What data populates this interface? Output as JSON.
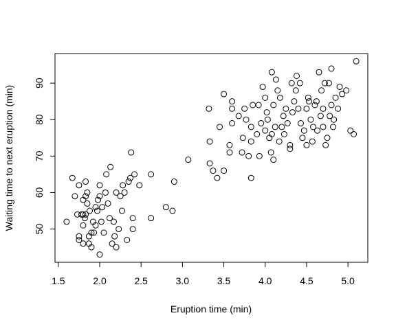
{
  "chart_data": {
    "type": "scatter",
    "xlabel": "Eruption time (min)",
    "ylabel": "Waiting time to next eruption (min)",
    "xlim": [
      1.46,
      5.24
    ],
    "ylim": [
      40.88,
      98.12
    ],
    "xticks": [
      {
        "value": 1.5,
        "label": "1.5"
      },
      {
        "value": 2,
        "label": "2.0"
      },
      {
        "value": 2.5,
        "label": "2.5"
      },
      {
        "value": 3,
        "label": "3.0"
      },
      {
        "value": 3.5,
        "label": "3.5"
      },
      {
        "value": 4,
        "label": "4.0"
      },
      {
        "value": 4.5,
        "label": "4.5"
      },
      {
        "value": 5,
        "label": "5.0"
      }
    ],
    "yticks": [
      50,
      60,
      70,
      80,
      90
    ],
    "color": "#000000",
    "series": [
      {
        "x": [
          1.6,
          1.67,
          1.7,
          1.73,
          1.75,
          1.75,
          1.75,
          1.78,
          1.8,
          1.8,
          1.8,
          1.8,
          1.82,
          1.83,
          1.83,
          1.83,
          1.85,
          1.85,
          1.87,
          1.87,
          1.88,
          1.9,
          1.9,
          1.92,
          1.93,
          1.95,
          1.95,
          1.97,
          1.98,
          2.0,
          2.0,
          2.0,
          2.02,
          2.03,
          2.05,
          2.07,
          2.08,
          2.1,
          2.12,
          2.13,
          2.15,
          2.17,
          2.18,
          2.2,
          2.2,
          2.23,
          2.25,
          2.27,
          2.28,
          2.3,
          2.33,
          2.35,
          2.37,
          2.38,
          2.4,
          2.4,
          2.42,
          2.48,
          2.62,
          2.62,
          2.8,
          2.88,
          2.9,
          3.07,
          3.32,
          3.33,
          3.33,
          3.37,
          3.42,
          3.45,
          3.5,
          3.5,
          3.57,
          3.57,
          3.6,
          3.6,
          3.6,
          3.68,
          3.72,
          3.73,
          3.75,
          3.77,
          3.8,
          3.83,
          3.83,
          3.83,
          3.85,
          3.9,
          3.92,
          3.93,
          3.95,
          3.97,
          4.0,
          4.0,
          4.02,
          4.03,
          4.05,
          4.07,
          4.08,
          4.08,
          4.1,
          4.1,
          4.12,
          4.13,
          4.15,
          4.17,
          4.18,
          4.2,
          4.22,
          4.23,
          4.25,
          4.27,
          4.3,
          4.3,
          4.32,
          4.33,
          4.35,
          4.37,
          4.38,
          4.4,
          4.42,
          4.43,
          4.45,
          4.47,
          4.5,
          4.5,
          4.52,
          4.53,
          4.55,
          4.57,
          4.58,
          4.6,
          4.62,
          4.63,
          4.65,
          4.67,
          4.68,
          4.7,
          4.7,
          4.72,
          4.73,
          4.75,
          4.77,
          4.78,
          4.8,
          4.8,
          4.82,
          4.83,
          4.85,
          4.88,
          4.9,
          4.93,
          4.98,
          5.03,
          5.07,
          5.1
        ],
        "values": [
          52,
          64,
          59,
          54,
          47,
          48,
          62,
          54,
          51,
          54,
          58,
          46,
          53,
          54,
          59,
          63,
          57,
          60,
          48,
          46,
          55,
          49,
          45,
          52,
          49,
          51,
          56,
          55,
          58,
          43,
          59,
          62,
          52,
          56,
          49,
          60,
          65,
          57,
          53,
          67,
          46,
          52,
          48,
          45,
          60,
          50,
          59,
          55,
          62,
          60,
          47,
          63,
          64,
          71,
          53,
          50,
          65,
          62,
          65,
          53,
          56,
          55,
          63,
          69,
          83,
          74,
          68,
          66,
          64,
          78,
          66,
          87,
          71,
          73,
          79,
          83,
          85,
          81,
          71,
          75,
          83,
          80,
          70,
          78,
          64,
          74,
          84,
          76,
          84,
          70,
          79,
          89,
          86,
          77,
          82,
          80,
          75,
          71,
          76,
          93,
          84,
          69,
          78,
          91,
          88,
          74,
          86,
          78,
          81,
          76,
          83,
          79,
          73,
          72,
          90,
          82,
          85,
          88,
          92,
          83,
          90,
          79,
          75,
          77,
          73,
          83,
          86,
          85,
          80,
          74,
          78,
          84,
          85,
          77,
          93,
          81,
          88,
          83,
          78,
          90,
          73,
          75,
          90,
          81,
          84,
          94,
          78,
          80,
          86,
          83,
          89,
          87,
          88,
          77,
          76,
          96
        ]
      }
    ]
  }
}
